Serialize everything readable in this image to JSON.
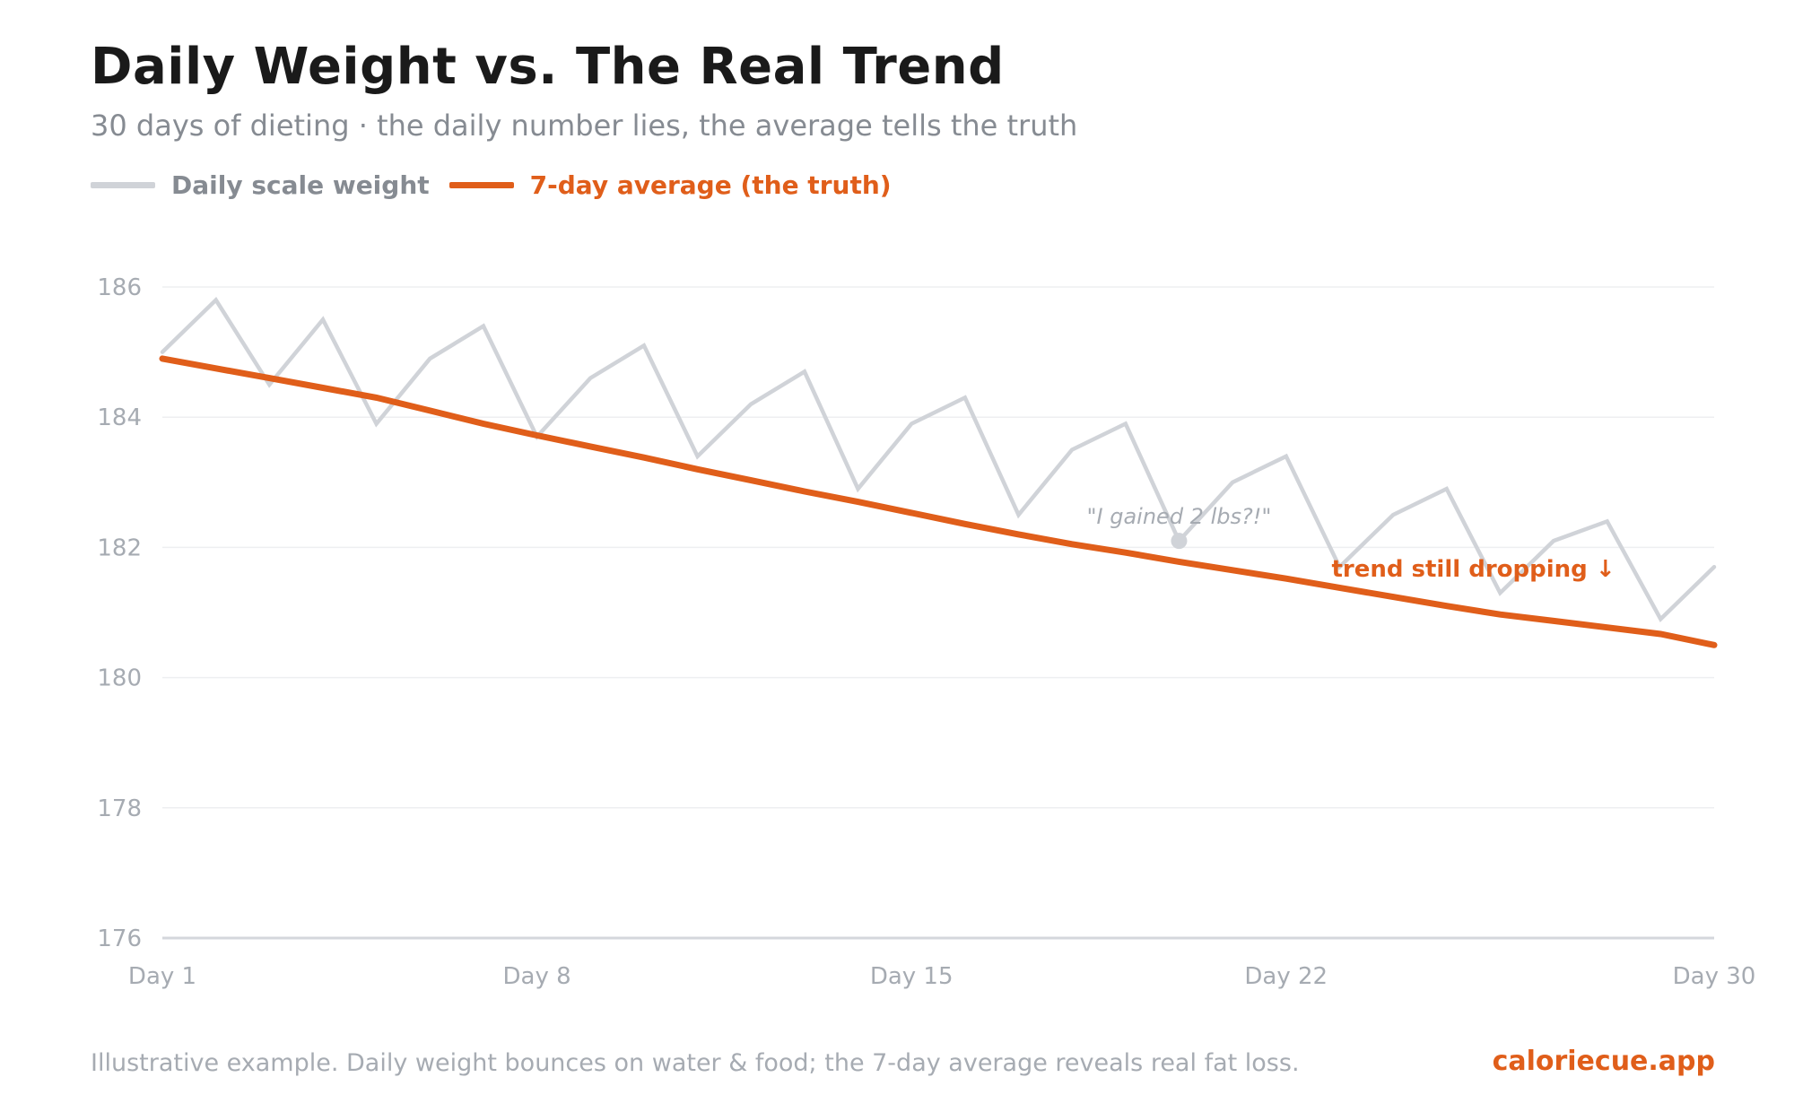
{
  "header": {
    "title": "Daily Weight vs. The Real Trend",
    "subtitle": "30 days of dieting · the daily number lies, the average tells the truth"
  },
  "legend": [
    {
      "label": "Daily scale weight",
      "color": "#d0d3d8",
      "label_color": "#868b92"
    },
    {
      "label": "7-day average (the truth)",
      "color": "#e05e1a",
      "label_color": "#e05e1a"
    }
  ],
  "footer": {
    "note": "Illustrative example. Daily weight bounces on water & food; the 7-day average reveals real fat loss.",
    "brand": "caloriecue.app",
    "brand_color": "#e05e1a"
  },
  "chart_data": {
    "type": "line",
    "title": "Daily Weight vs. The Real Trend",
    "subtitle": "30 days of dieting · the daily number lies, the average tells the truth",
    "xlabel": "",
    "ylabel": "",
    "x": [
      1,
      2,
      3,
      4,
      5,
      6,
      7,
      8,
      9,
      10,
      11,
      12,
      13,
      14,
      15,
      16,
      17,
      18,
      19,
      20,
      21,
      22,
      23,
      24,
      25,
      26,
      27,
      28,
      29,
      30
    ],
    "xlim": [
      1,
      30
    ],
    "ylim": [
      176,
      186
    ],
    "yticks": [
      176,
      178,
      180,
      182,
      184,
      186
    ],
    "ytick_labels": [
      "176",
      "178",
      "180",
      "182",
      "184",
      "186"
    ],
    "xticks": [
      1,
      8,
      15,
      22,
      30
    ],
    "xtick_labels": [
      "Day 1",
      "Day 8",
      "Day 15",
      "Day 22",
      "Day 30"
    ],
    "grid": "horizontal",
    "legend_position": "top-left",
    "series": [
      {
        "name": "Daily scale weight",
        "color": "#d0d3d8",
        "values": [
          185.0,
          185.8,
          184.5,
          185.5,
          183.9,
          184.9,
          185.4,
          183.7,
          184.6,
          185.1,
          183.4,
          184.2,
          184.7,
          182.9,
          183.9,
          184.3,
          182.5,
          183.5,
          183.9,
          182.1,
          183.0,
          183.4,
          181.7,
          182.5,
          182.9,
          181.3,
          182.1,
          182.4,
          180.9,
          181.7
        ]
      },
      {
        "name": "7-day average (the truth)",
        "color": "#e05e1a",
        "values": [
          184.9,
          184.75,
          184.6,
          184.45,
          184.3,
          184.1,
          183.9,
          183.72,
          183.55,
          183.38,
          183.2,
          183.03,
          182.86,
          182.7,
          182.53,
          182.36,
          182.2,
          182.05,
          181.92,
          181.78,
          181.65,
          181.52,
          181.38,
          181.24,
          181.1,
          180.97,
          180.87,
          180.77,
          180.67,
          180.5
        ]
      }
    ],
    "annotations": [
      {
        "text": "\"I gained 2 lbs?!\"",
        "x": 20,
        "y": 182.1,
        "series": 0,
        "marker": true,
        "color": "#a6abb2"
      },
      {
        "text": "trend still dropping ↓",
        "x": 25.5,
        "y": 181.3,
        "series": 1,
        "color": "#e05e1a"
      }
    ]
  }
}
